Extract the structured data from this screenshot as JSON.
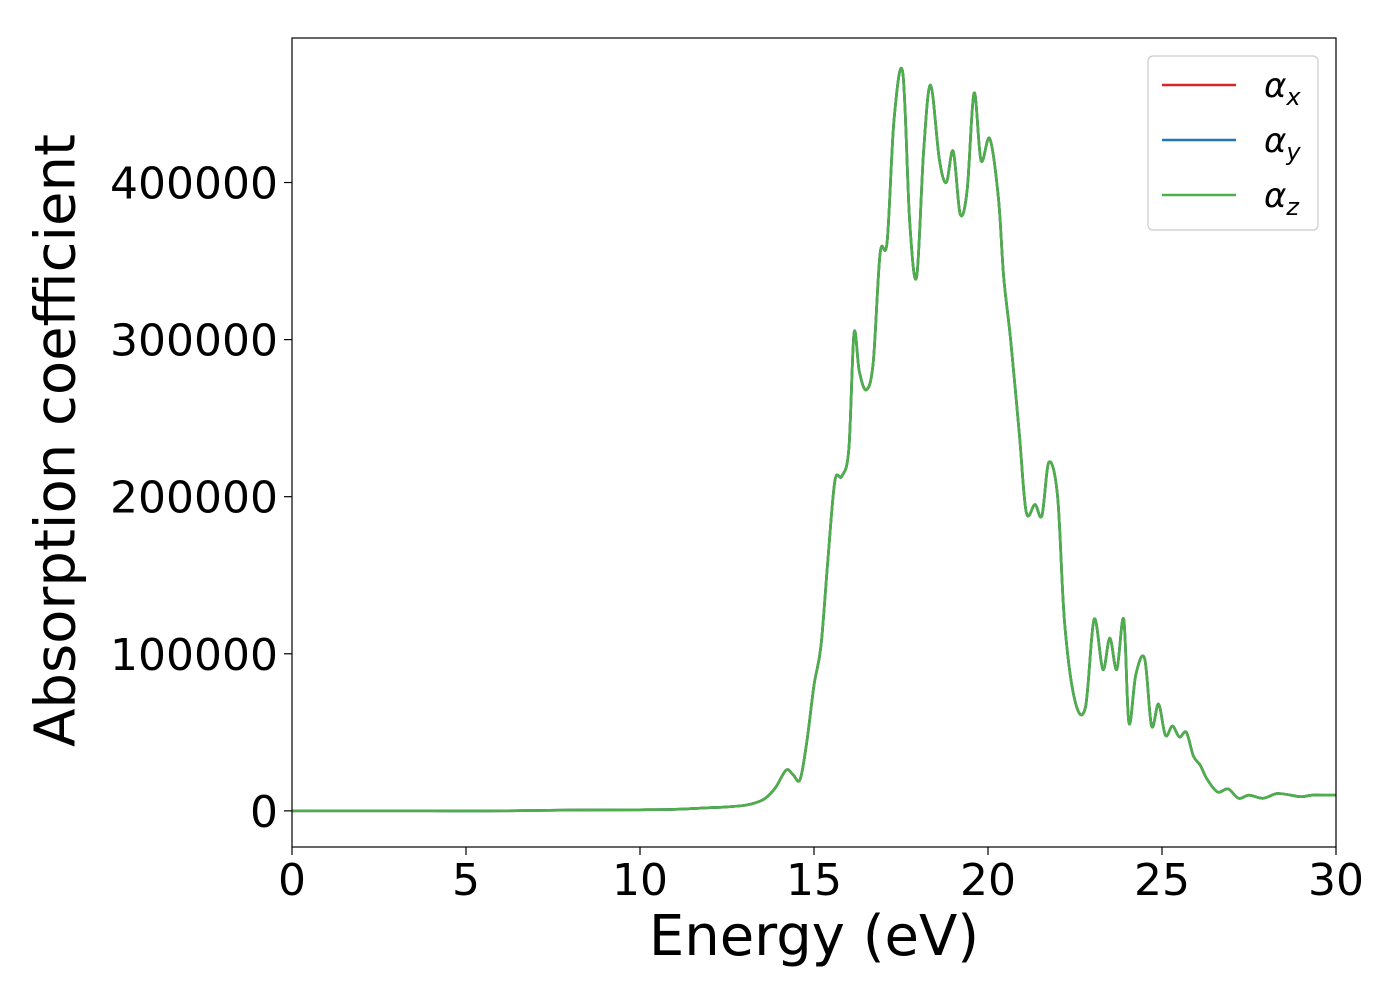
{
  "chart_data": {
    "type": "line",
    "title": "",
    "xlabel": "Energy (eV)",
    "ylabel": "Absorption coefficient",
    "xlim": [
      0,
      30
    ],
    "ylim": [
      -23000,
      492000
    ],
    "x_ticks": [
      0,
      5,
      10,
      15,
      20,
      25,
      30
    ],
    "x_tick_labels": [
      "0",
      "5",
      "10",
      "15",
      "20",
      "25",
      "30"
    ],
    "y_ticks": [
      0,
      100000,
      200000,
      300000,
      400000
    ],
    "y_tick_labels": [
      "0",
      "100000",
      "200000",
      "300000",
      "400000"
    ],
    "grid": false,
    "legend_position": "top-right",
    "legend_entries": [
      {
        "base": "α",
        "sub": "x",
        "color": "#d62728"
      },
      {
        "base": "α",
        "sub": "y",
        "color": "#1f77b4"
      },
      {
        "base": "α",
        "sub": "z",
        "color": "#4daf4a"
      }
    ],
    "series": [
      {
        "name": "αx",
        "color": "#d62728",
        "x": [
          0,
          2,
          4,
          6,
          8,
          10,
          11,
          12,
          12.5,
          13,
          13.3,
          13.6,
          13.9,
          14.2,
          14.4,
          14.6,
          14.8,
          15.0,
          15.2,
          15.4,
          15.6,
          15.8,
          16.0,
          16.15,
          16.3,
          16.5,
          16.7,
          16.9,
          17.1,
          17.3,
          17.55,
          17.75,
          17.95,
          18.15,
          18.35,
          18.6,
          18.8,
          19.0,
          19.2,
          19.4,
          19.6,
          19.8,
          20.05,
          20.3,
          20.45,
          20.65,
          20.9,
          21.1,
          21.35,
          21.55,
          21.75,
          22.0,
          22.2,
          22.5,
          22.8,
          23.05,
          23.3,
          23.5,
          23.7,
          23.9,
          24.05,
          24.25,
          24.5,
          24.7,
          24.9,
          25.1,
          25.3,
          25.5,
          25.7,
          25.9,
          26.1,
          26.3,
          26.6,
          26.9,
          27.2,
          27.5,
          27.9,
          28.3,
          28.7,
          29.0,
          29.3,
          29.6,
          30.0
        ],
        "y": [
          0,
          0,
          0,
          0,
          500,
          700,
          1000,
          2000,
          2500,
          3500,
          5000,
          8000,
          15000,
          26000,
          23000,
          20000,
          45000,
          80000,
          105000,
          160000,
          210000,
          213000,
          230000,
          304000,
          280000,
          268000,
          285000,
          355000,
          362000,
          440000,
          470000,
          375000,
          340000,
          420000,
          462000,
          415000,
          400000,
          420000,
          380000,
          395000,
          457000,
          414000,
          428000,
          390000,
          340000,
          300000,
          240000,
          190000,
          195000,
          188000,
          222000,
          200000,
          120000,
          70000,
          66000,
          122000,
          90000,
          110000,
          90000,
          122000,
          56000,
          87000,
          97000,
          54000,
          68000,
          48000,
          54000,
          47000,
          50000,
          35000,
          29000,
          20000,
          12000,
          14000,
          8000,
          10000,
          8000,
          11000,
          10000,
          9000,
          10000,
          10000,
          10000
        ]
      },
      {
        "name": "αy",
        "color": "#1f77b4",
        "x": [
          0,
          2,
          4,
          6,
          8,
          10,
          11,
          12,
          12.5,
          13,
          13.3,
          13.6,
          13.9,
          14.2,
          14.4,
          14.6,
          14.8,
          15.0,
          15.2,
          15.4,
          15.6,
          15.8,
          16.0,
          16.15,
          16.3,
          16.5,
          16.7,
          16.9,
          17.1,
          17.3,
          17.55,
          17.75,
          17.95,
          18.15,
          18.35,
          18.6,
          18.8,
          19.0,
          19.2,
          19.4,
          19.6,
          19.8,
          20.05,
          20.3,
          20.45,
          20.65,
          20.9,
          21.1,
          21.35,
          21.55,
          21.75,
          22.0,
          22.2,
          22.5,
          22.8,
          23.05,
          23.3,
          23.5,
          23.7,
          23.9,
          24.05,
          24.25,
          24.5,
          24.7,
          24.9,
          25.1,
          25.3,
          25.5,
          25.7,
          25.9,
          26.1,
          26.3,
          26.6,
          26.9,
          27.2,
          27.5,
          27.9,
          28.3,
          28.7,
          29.0,
          29.3,
          29.6,
          30.0
        ],
        "y": [
          0,
          0,
          0,
          0,
          500,
          700,
          1000,
          2000,
          2500,
          3500,
          5000,
          8000,
          15000,
          26000,
          23000,
          20000,
          45000,
          80000,
          105000,
          160000,
          210000,
          213000,
          230000,
          304000,
          280000,
          268000,
          285000,
          355000,
          362000,
          440000,
          470000,
          375000,
          340000,
          420000,
          462000,
          415000,
          400000,
          420000,
          380000,
          395000,
          457000,
          414000,
          428000,
          390000,
          340000,
          300000,
          240000,
          190000,
          195000,
          188000,
          222000,
          200000,
          120000,
          70000,
          66000,
          122000,
          90000,
          110000,
          90000,
          122000,
          56000,
          87000,
          97000,
          54000,
          68000,
          48000,
          54000,
          47000,
          50000,
          35000,
          29000,
          20000,
          12000,
          14000,
          8000,
          10000,
          8000,
          11000,
          10000,
          9000,
          10000,
          10000,
          10000
        ]
      },
      {
        "name": "αz",
        "color": "#4daf4a",
        "x": [
          0,
          2,
          4,
          6,
          8,
          10,
          11,
          12,
          12.5,
          13,
          13.3,
          13.6,
          13.9,
          14.2,
          14.4,
          14.6,
          14.8,
          15.0,
          15.2,
          15.4,
          15.6,
          15.8,
          16.0,
          16.15,
          16.3,
          16.5,
          16.7,
          16.9,
          17.1,
          17.3,
          17.55,
          17.75,
          17.95,
          18.15,
          18.35,
          18.6,
          18.8,
          19.0,
          19.2,
          19.4,
          19.6,
          19.8,
          20.05,
          20.3,
          20.45,
          20.65,
          20.9,
          21.1,
          21.35,
          21.55,
          21.75,
          22.0,
          22.2,
          22.5,
          22.8,
          23.05,
          23.3,
          23.5,
          23.7,
          23.9,
          24.05,
          24.25,
          24.5,
          24.7,
          24.9,
          25.1,
          25.3,
          25.5,
          25.7,
          25.9,
          26.1,
          26.3,
          26.6,
          26.9,
          27.2,
          27.5,
          27.9,
          28.3,
          28.7,
          29.0,
          29.3,
          29.6,
          30.0
        ],
        "y": [
          0,
          0,
          0,
          0,
          500,
          700,
          1000,
          2000,
          2500,
          3500,
          5000,
          8000,
          15000,
          26000,
          23000,
          20000,
          45000,
          80000,
          105000,
          160000,
          210000,
          213000,
          230000,
          304000,
          280000,
          268000,
          285000,
          355000,
          362000,
          440000,
          470000,
          375000,
          340000,
          420000,
          462000,
          415000,
          400000,
          420000,
          380000,
          395000,
          457000,
          414000,
          428000,
          390000,
          340000,
          300000,
          240000,
          190000,
          195000,
          188000,
          222000,
          200000,
          120000,
          70000,
          66000,
          122000,
          90000,
          110000,
          90000,
          122000,
          56000,
          87000,
          97000,
          54000,
          68000,
          48000,
          54000,
          47000,
          50000,
          35000,
          29000,
          20000,
          12000,
          14000,
          8000,
          10000,
          8000,
          11000,
          10000,
          9000,
          10000,
          10000,
          10000
        ]
      }
    ]
  }
}
